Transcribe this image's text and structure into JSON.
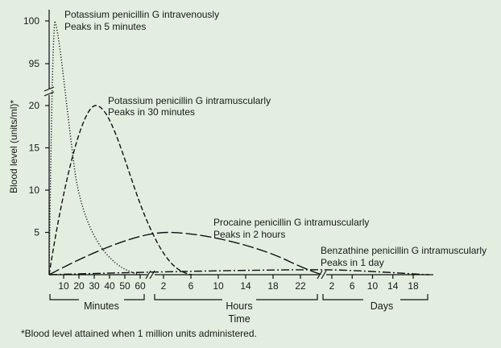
{
  "chart_data": {
    "type": "line",
    "ylabel": "Blood level (units/ml)*",
    "xlabel": "Time",
    "footnote": "*Blood level attained when 1 million units administered.",
    "y_ticks_lower": [
      5,
      10,
      15,
      20
    ],
    "y_ticks_upper": [
      95,
      100
    ],
    "y_axis_break_between": [
      20,
      95
    ],
    "x_segments": [
      {
        "name": "Minutes",
        "unit": "minutes",
        "ticks": [
          "10",
          "20",
          "30",
          "40",
          "50",
          "60"
        ]
      },
      {
        "name": "Hours",
        "unit": "hours",
        "ticks": [
          "2",
          "6",
          "10",
          "14",
          "18",
          "22"
        ]
      },
      {
        "name": "Days",
        "unit": "days",
        "ticks": [
          "2",
          "6",
          "10",
          "14",
          "18"
        ]
      }
    ],
    "series": [
      {
        "name": "Potassium penicillin G intravenously",
        "label_line1": "Potassium penicillin G intravenously",
        "label_line2": "Peaks in 5 minutes",
        "style": "dotted",
        "peak": {
          "time": "5 minutes",
          "value": 100
        }
      },
      {
        "name": "Potassium penicillin G intramuscularly",
        "label_line1": "Potassium penicillin G intramuscularly",
        "label_line2": "Peaks in 30 minutes",
        "style": "dashed",
        "peak": {
          "time": "30 minutes",
          "value": 20
        }
      },
      {
        "name": "Procaine penicillin G intramuscularly",
        "label_line1": "Procaine penicillin G intramuscularly",
        "label_line2": "Peaks in 2 hours",
        "style": "long-dash",
        "peak": {
          "time": "2 hours",
          "value": 5
        }
      },
      {
        "name": "Benzathine penicillin G intramuscularly",
        "label_line1": "Benzathine penicillin G intramuscularly",
        "label_line2": "Peaks in 1 day",
        "style": "dash-dot",
        "peak": {
          "time": "1 day",
          "value": 0.3
        }
      }
    ]
  }
}
